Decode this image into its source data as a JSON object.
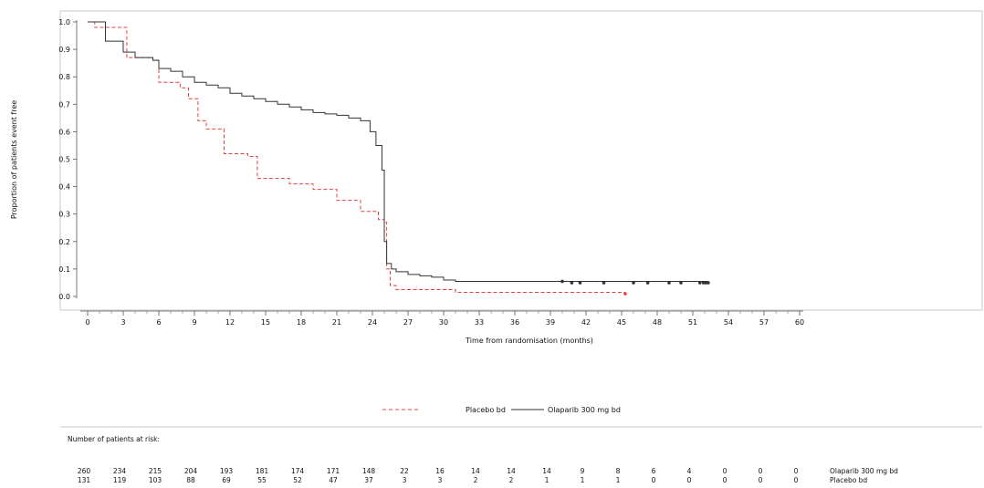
{
  "chart_data": {
    "type": "line",
    "title": "",
    "xlabel": "Time from randomisation (months)",
    "ylabel": "Proportion of patients event free",
    "xlim": [
      0,
      60
    ],
    "ylim": [
      0,
      1.0
    ],
    "x_ticks": [
      0,
      3,
      6,
      9,
      12,
      15,
      18,
      21,
      24,
      27,
      30,
      33,
      36,
      39,
      42,
      45,
      48,
      51,
      54,
      57,
      60
    ],
    "y_ticks": [
      0.0,
      0.1,
      0.2,
      0.3,
      0.4,
      0.5,
      0.6,
      0.7,
      0.8,
      0.9,
      1.0
    ],
    "grid": false,
    "legend_position": "bottom",
    "series": [
      {
        "name": "Placebo bd",
        "style": "dashed",
        "color": "#e8413c",
        "x": [
          0,
          0.6,
          2.8,
          3.3,
          5.5,
          6.0,
          7.8,
          8.5,
          9.3,
          10.0,
          10.5,
          11.5,
          13.5,
          14.3,
          17.0,
          19.0,
          21.0,
          23.0,
          24.5,
          25.0,
          25.2,
          25.5,
          26.0,
          27.0,
          31.0,
          45.3
        ],
        "y": [
          1.0,
          0.98,
          0.98,
          0.87,
          0.86,
          0.78,
          0.76,
          0.72,
          0.64,
          0.61,
          0.61,
          0.52,
          0.51,
          0.43,
          0.41,
          0.39,
          0.35,
          0.31,
          0.28,
          0.27,
          0.1,
          0.04,
          0.025,
          0.025,
          0.015,
          0.01
        ],
        "censored_x": [
          45.3
        ],
        "censored_y": [
          0.01
        ]
      },
      {
        "name": "Olaparib 300 mg bd",
        "style": "solid",
        "color": "#333333",
        "x": [
          0,
          1.5,
          3.0,
          4.0,
          5.5,
          6.0,
          7.0,
          8.0,
          9.0,
          10.0,
          11.0,
          12.0,
          13.0,
          14.0,
          15.0,
          16.0,
          17.0,
          18.0,
          19.0,
          20.0,
          21.0,
          22.0,
          23.0,
          23.8,
          24.3,
          24.8,
          25.0,
          25.2,
          25.6,
          26.0,
          27.0,
          28.0,
          29.0,
          30.0,
          31.0,
          40.0,
          52.2
        ],
        "y": [
          1.0,
          0.93,
          0.89,
          0.87,
          0.86,
          0.83,
          0.82,
          0.8,
          0.78,
          0.77,
          0.76,
          0.74,
          0.73,
          0.72,
          0.71,
          0.7,
          0.69,
          0.68,
          0.67,
          0.665,
          0.66,
          0.65,
          0.64,
          0.6,
          0.55,
          0.46,
          0.2,
          0.12,
          0.1,
          0.09,
          0.08,
          0.075,
          0.07,
          0.06,
          0.055,
          0.055,
          0.05
        ],
        "censored_x": [
          40.0,
          40.8,
          41.5,
          43.5,
          46.0,
          47.2,
          49.0,
          50.0,
          51.6,
          51.9,
          52.1,
          52.3
        ],
        "censored_y": [
          0.055,
          0.05,
          0.05,
          0.05,
          0.05,
          0.05,
          0.05,
          0.05,
          0.05,
          0.05,
          0.05,
          0.05
        ]
      }
    ],
    "risk_table": {
      "title": "Number of patients at risk:",
      "rows": [
        {
          "name": "Olaparib 300 mg bd",
          "values": [
            "260",
            "234",
            "215",
            "204",
            "193",
            "181",
            "174",
            "171",
            "148",
            "22",
            "16",
            "14",
            "14",
            "14",
            "9",
            "8",
            "6",
            "4",
            "0",
            "0",
            "0"
          ]
        },
        {
          "name": "Placebo bd",
          "values": [
            "131",
            "119",
            "103",
            "88",
            "69",
            "55",
            "52",
            "47",
            "37",
            "3",
            "3",
            "2",
            "2",
            "1",
            "1",
            "1",
            "0",
            "0",
            "0",
            "0",
            "0"
          ]
        }
      ]
    }
  }
}
